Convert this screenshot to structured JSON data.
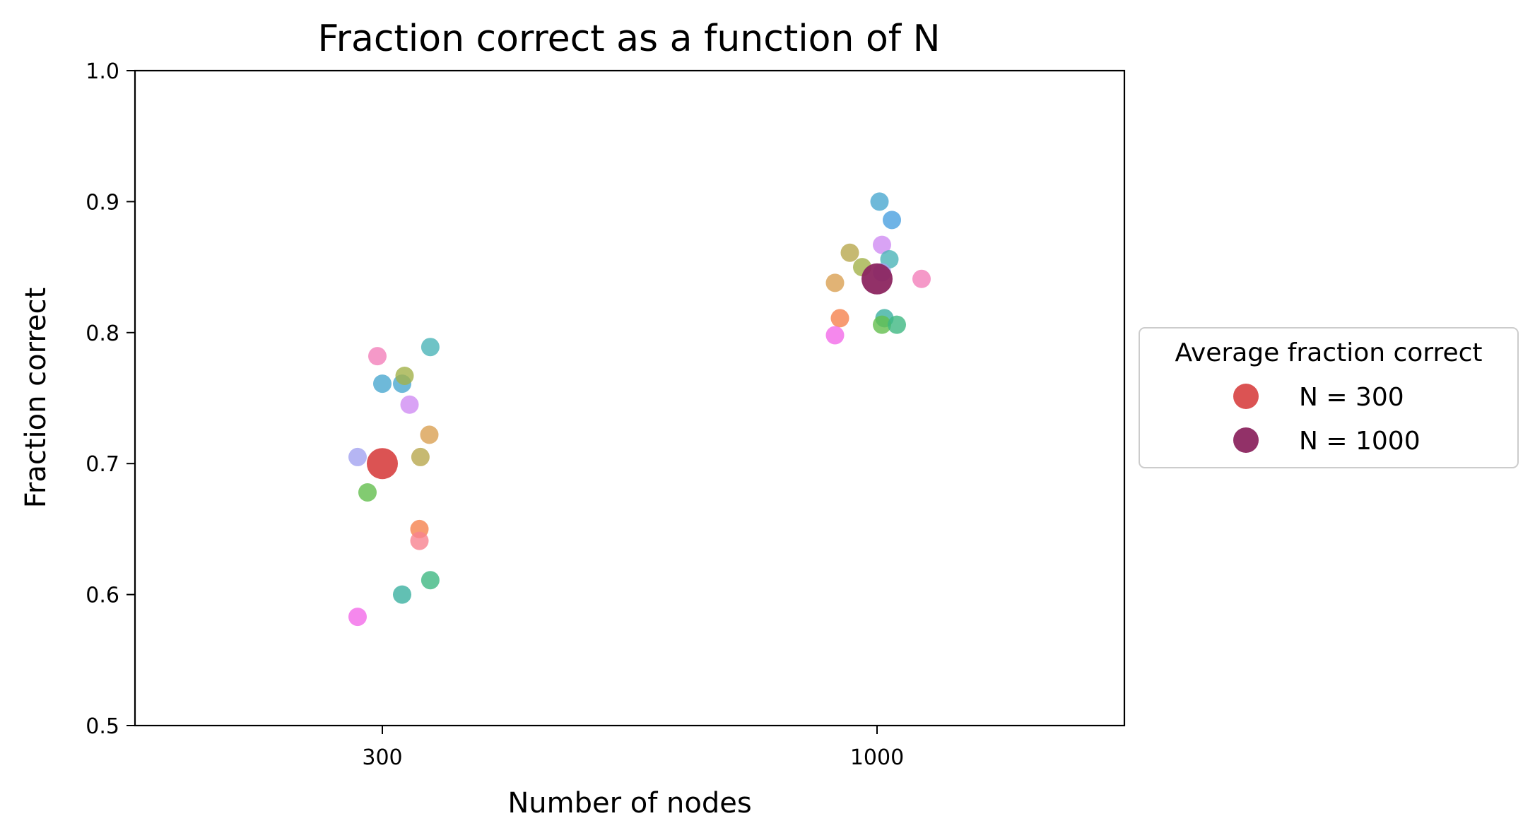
{
  "chart_data": {
    "type": "scatter",
    "title": "Fraction correct as a function of N",
    "xlabel": "Number of nodes",
    "ylabel": "Fraction correct",
    "x_categories": [
      "300",
      "1000"
    ],
    "ylim": [
      0.5,
      1.0
    ],
    "yticks": [
      "0.5",
      "0.6",
      "0.7",
      "0.8",
      "0.9",
      "1.0"
    ],
    "grid": false,
    "legend": {
      "title": "Average fraction correct",
      "placement": "outside-right",
      "entries": [
        {
          "label": "N = 300",
          "color": "#d94a4a"
        },
        {
          "label": "N = 1000",
          "color": "#8c2660"
        }
      ]
    },
    "series": [
      {
        "category": "300",
        "points": [
          {
            "offset": -0.05,
            "y": 0.705,
            "color": "#a3a3f0"
          },
          {
            "offset": -0.03,
            "y": 0.678,
            "color": "#63be4e"
          },
          {
            "offset": -0.01,
            "y": 0.782,
            "color": "#f27fba"
          },
          {
            "offset": 0.0,
            "y": 0.761,
            "color": "#4aa8d0"
          },
          {
            "offset": 0.04,
            "y": 0.761,
            "color": "#4aa8d0"
          },
          {
            "offset": 0.045,
            "y": 0.767,
            "color": "#a3b14a"
          },
          {
            "offset": 0.055,
            "y": 0.745,
            "color": "#d08cf2"
          },
          {
            "offset": 0.075,
            "y": 0.65,
            "color": "#f5824e"
          },
          {
            "offset": 0.075,
            "y": 0.641,
            "color": "#f78290"
          },
          {
            "offset": 0.077,
            "y": 0.705,
            "color": "#b8a84e"
          },
          {
            "offset": 0.095,
            "y": 0.722,
            "color": "#d9a052"
          },
          {
            "offset": 0.097,
            "y": 0.789,
            "color": "#4bb4b8"
          },
          {
            "offset": 0.04,
            "y": 0.6,
            "color": "#3bb0a0"
          },
          {
            "offset": 0.097,
            "y": 0.611,
            "color": "#3fb882"
          },
          {
            "offset": -0.05,
            "y": 0.583,
            "color": "#f26ae8"
          }
        ],
        "average": {
          "y": 0.7,
          "color": "#d94a4a"
        }
      },
      {
        "category": "1000",
        "points": [
          {
            "offset": 0.005,
            "y": 0.9,
            "color": "#4aa8d0"
          },
          {
            "offset": 0.03,
            "y": 0.886,
            "color": "#4aa0e0"
          },
          {
            "offset": 0.01,
            "y": 0.867,
            "color": "#d08cf2"
          },
          {
            "offset": -0.055,
            "y": 0.861,
            "color": "#b8a84e"
          },
          {
            "offset": 0.025,
            "y": 0.856,
            "color": "#4bb4b8"
          },
          {
            "offset": -0.03,
            "y": 0.85,
            "color": "#a3b14a"
          },
          {
            "offset": 0.01,
            "y": 0.846,
            "color": "#a3a3f0"
          },
          {
            "offset": 0.09,
            "y": 0.841,
            "color": "#f27fba"
          },
          {
            "offset": -0.085,
            "y": 0.838,
            "color": "#d9a052"
          },
          {
            "offset": -0.075,
            "y": 0.811,
            "color": "#f5824e"
          },
          {
            "offset": 0.015,
            "y": 0.811,
            "color": "#3bb0a0"
          },
          {
            "offset": 0.01,
            "y": 0.806,
            "color": "#63be4e"
          },
          {
            "offset": 0.04,
            "y": 0.806,
            "color": "#3fb882"
          },
          {
            "offset": -0.085,
            "y": 0.798,
            "color": "#f26ae8"
          }
        ],
        "average": {
          "y": 0.841,
          "color": "#8c2660"
        }
      }
    ]
  }
}
